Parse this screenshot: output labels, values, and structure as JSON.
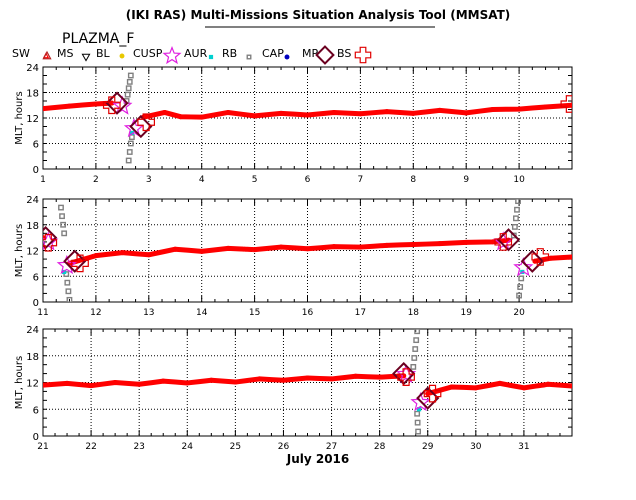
{
  "header": {
    "title": "(IKI RAS) Multi-Missions Situation Analysis Tool (MMSAT)",
    "satellite": "PLAZMA_F",
    "month_label": "July 2016"
  },
  "legend": [
    {
      "key": "sw",
      "label": "SW",
      "color": "#ff0000",
      "marker": "dot"
    },
    {
      "key": "ms",
      "label": "MS",
      "color": "#b22222",
      "marker": "triangle-up"
    },
    {
      "key": "bl",
      "label": "BL",
      "color": "#000000",
      "marker": "triangle-down"
    },
    {
      "key": "cusp",
      "label": "CUSP",
      "color": "#e8c800",
      "marker": "dot"
    },
    {
      "key": "aur",
      "label": "AUR",
      "color": "#e020e0",
      "marker": "star"
    },
    {
      "key": "rb",
      "label": "RB",
      "color": "#00d0d0",
      "marker": "square-filled"
    },
    {
      "key": "cap",
      "label": "CAP",
      "color": "#808080",
      "marker": "square-open"
    },
    {
      "key": "mp",
      "label": "MP",
      "color": "#0000c0",
      "marker": "dot"
    },
    {
      "key": "bs",
      "label": "BS",
      "color": "#6b0020",
      "marker": "diamond"
    },
    {
      "key": "bs_cross",
      "label": "",
      "color": "#e00000",
      "marker": "cross"
    }
  ],
  "chart_data": [
    {
      "type": "scatter",
      "ylabel": "MLT, hours",
      "ylim": [
        0,
        24
      ],
      "yticks": [
        "0",
        "6",
        "12",
        "18",
        "24"
      ],
      "xlim": [
        1,
        11
      ],
      "xticks": [
        "1",
        "2",
        "3",
        "4",
        "5",
        "6",
        "7",
        "8",
        "9",
        "10"
      ],
      "series": [
        {
          "key": "sw",
          "points": [
            [
              1.0,
              14.2
            ],
            [
              1.5,
              14.8
            ],
            [
              2.0,
              15.3
            ],
            [
              2.3,
              15.5
            ],
            [
              2.9,
              12.2
            ],
            [
              3.3,
              13.3
            ],
            [
              3.6,
              12.3
            ],
            [
              4.0,
              12.2
            ],
            [
              4.5,
              13.3
            ],
            [
              5.0,
              12.5
            ],
            [
              5.5,
              13.1
            ],
            [
              6.0,
              12.7
            ],
            [
              6.5,
              13.3
            ],
            [
              7.0,
              13.0
            ],
            [
              7.5,
              13.5
            ],
            [
              8.0,
              13.1
            ],
            [
              8.5,
              13.8
            ],
            [
              9.0,
              13.2
            ],
            [
              9.5,
              14.0
            ],
            [
              10.0,
              14.1
            ],
            [
              10.5,
              14.6
            ],
            [
              11.0,
              15.0
            ]
          ]
        },
        {
          "key": "cap",
          "points": [
            [
              2.62,
              2.0
            ],
            [
              2.64,
              4.0
            ],
            [
              2.66,
              6.0
            ],
            [
              2.68,
              7.5
            ],
            [
              2.58,
              16.0
            ],
            [
              2.6,
              17.5
            ],
            [
              2.62,
              19.0
            ],
            [
              2.64,
              20.5
            ],
            [
              2.66,
              22.0
            ]
          ]
        },
        {
          "key": "rb",
          "points": [
            [
              2.68,
              8.5
            ]
          ]
        },
        {
          "key": "aur",
          "points": [
            [
              2.72,
              9.5
            ],
            [
              2.5,
              14.8
            ]
          ]
        },
        {
          "key": "bs",
          "points": [
            [
              2.4,
              15.5
            ],
            [
              2.85,
              10.0
            ]
          ]
        },
        {
          "key": "bs_cross",
          "points": [
            [
              2.3,
              15.0
            ],
            [
              2.95,
              11.0
            ],
            [
              10.95,
              15.3
            ]
          ]
        }
      ]
    },
    {
      "type": "scatter",
      "ylabel": "MLT, hours",
      "ylim": [
        0,
        24
      ],
      "yticks": [
        "0",
        "6",
        "12",
        "18",
        "24"
      ],
      "xlim": [
        11,
        21
      ],
      "xticks": [
        "11",
        "12",
        "13",
        "14",
        "15",
        "16",
        "17",
        "18",
        "19",
        "20"
      ],
      "series": [
        {
          "key": "sw",
          "points": [
            [
              11.0,
              15.0
            ],
            [
              11.5,
              9.0
            ],
            [
              12.0,
              10.8
            ],
            [
              12.5,
              11.5
            ],
            [
              13.0,
              11.0
            ],
            [
              13.5,
              12.3
            ],
            [
              14.0,
              11.8
            ],
            [
              14.5,
              12.5
            ],
            [
              15.0,
              12.2
            ],
            [
              15.5,
              12.8
            ],
            [
              16.0,
              12.4
            ],
            [
              16.5,
              12.9
            ],
            [
              17.0,
              12.8
            ],
            [
              17.5,
              13.2
            ],
            [
              18.0,
              13.4
            ],
            [
              18.5,
              13.6
            ],
            [
              19.0,
              13.9
            ],
            [
              19.5,
              14.0
            ],
            [
              19.8,
              14.4
            ],
            [
              20.3,
              9.5
            ],
            [
              20.6,
              10.2
            ],
            [
              21.0,
              10.5
            ]
          ]
        },
        {
          "key": "cap",
          "points": [
            [
              11.5,
              0.5
            ],
            [
              11.48,
              2.5
            ],
            [
              11.46,
              4.5
            ],
            [
              11.44,
              6.5
            ],
            [
              11.4,
              16.0
            ],
            [
              11.38,
              18.0
            ],
            [
              11.36,
              20.0
            ],
            [
              11.34,
              22.0
            ],
            [
              20.0,
              1.5
            ],
            [
              20.02,
              3.5
            ],
            [
              20.04,
              5.5
            ],
            [
              19.9,
              15.5
            ],
            [
              19.92,
              17.5
            ],
            [
              19.94,
              19.5
            ],
            [
              19.96,
              21.5
            ],
            [
              19.98,
              23.5
            ]
          ]
        },
        {
          "key": "rb",
          "points": [
            [
              11.4,
              7.0
            ],
            [
              20.06,
              7.0
            ]
          ]
        },
        {
          "key": "aur",
          "points": [
            [
              11.45,
              8.5
            ],
            [
              11.1,
              14.0
            ],
            [
              20.08,
              8.0
            ],
            [
              19.7,
              14.0
            ]
          ]
        },
        {
          "key": "bs",
          "points": [
            [
              11.05,
              15.0
            ],
            [
              11.6,
              9.5
            ],
            [
              19.8,
              14.5
            ],
            [
              20.25,
              9.5
            ]
          ]
        },
        {
          "key": "bs_cross",
          "points": [
            [
              11.1,
              13.8
            ],
            [
              11.7,
              9.0
            ],
            [
              19.7,
              14.0
            ],
            [
              20.4,
              10.5
            ]
          ]
        }
      ]
    },
    {
      "type": "scatter",
      "xlabel": "July 2016",
      "ylabel": "MLT, hours",
      "ylim": [
        0,
        24
      ],
      "yticks": [
        "0",
        "6",
        "12",
        "18",
        "24"
      ],
      "xlim": [
        21,
        32
      ],
      "xticks": [
        "21",
        "22",
        "23",
        "24",
        "25",
        "26",
        "27",
        "28",
        "29",
        "30",
        "31"
      ],
      "series": [
        {
          "key": "sw",
          "points": [
            [
              21.0,
              11.4
            ],
            [
              21.5,
              11.8
            ],
            [
              22.0,
              11.3
            ],
            [
              22.5,
              12.0
            ],
            [
              23.0,
              11.6
            ],
            [
              23.5,
              12.3
            ],
            [
              24.0,
              11.9
            ],
            [
              24.5,
              12.5
            ],
            [
              25.0,
              12.1
            ],
            [
              25.5,
              12.8
            ],
            [
              26.0,
              12.5
            ],
            [
              26.5,
              13.0
            ],
            [
              27.0,
              12.8
            ],
            [
              27.5,
              13.4
            ],
            [
              28.0,
              13.2
            ],
            [
              28.5,
              13.5
            ],
            [
              29.0,
              9.5
            ],
            [
              29.5,
              11.0
            ],
            [
              30.0,
              10.8
            ],
            [
              30.5,
              11.8
            ],
            [
              31.0,
              10.8
            ],
            [
              31.5,
              11.6
            ],
            [
              32.0,
              11.2
            ]
          ]
        },
        {
          "key": "cap",
          "points": [
            [
              28.8,
              1.0
            ],
            [
              28.79,
              3.0
            ],
            [
              28.78,
              5.0
            ],
            [
              28.7,
              15.5
            ],
            [
              28.72,
              17.5
            ],
            [
              28.74,
              19.5
            ],
            [
              28.76,
              21.5
            ],
            [
              28.78,
              23.5
            ]
          ]
        },
        {
          "key": "rb",
          "points": [
            [
              28.82,
              6.0
            ]
          ]
        },
        {
          "key": "aur",
          "points": [
            [
              28.85,
              7.5
            ],
            [
              28.55,
              13.8
            ]
          ]
        },
        {
          "key": "bs",
          "points": [
            [
              28.5,
              14.0
            ],
            [
              29.0,
              8.5
            ]
          ]
        },
        {
          "key": "bs_cross",
          "points": [
            [
              28.55,
              13.2
            ],
            [
              29.1,
              9.5
            ]
          ]
        }
      ]
    }
  ]
}
